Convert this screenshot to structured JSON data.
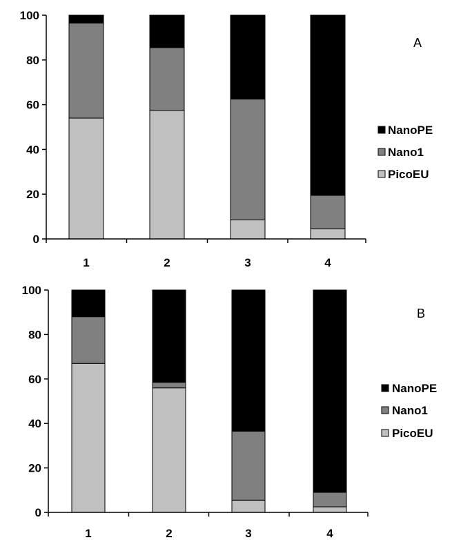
{
  "chart_data": [
    {
      "type": "bar",
      "stacked": true,
      "panel_label": "A",
      "categories": [
        "1",
        "2",
        "3",
        "4"
      ],
      "series": [
        {
          "name": "PicoEU",
          "values": [
            54,
            57.5,
            8.5,
            4.5
          ],
          "color": "#c0c0c0"
        },
        {
          "name": "Nano1",
          "values": [
            42.5,
            28,
            54,
            15
          ],
          "color": "#808080"
        },
        {
          "name": "NanoPE",
          "values": [
            3.5,
            14.5,
            37.5,
            80.5
          ],
          "color": "#000000"
        }
      ],
      "ylim": [
        0,
        100
      ],
      "yticks": [
        "0",
        "20",
        "40",
        "60",
        "80",
        "100"
      ],
      "legend_position": "right",
      "grid": false
    },
    {
      "type": "bar",
      "stacked": true,
      "panel_label": "B",
      "categories": [
        "1",
        "2",
        "3",
        "4"
      ],
      "series": [
        {
          "name": "PicoEU",
          "values": [
            67,
            56,
            5.5,
            2.5
          ],
          "color": "#c0c0c0"
        },
        {
          "name": "Nano1",
          "values": [
            21,
            2.5,
            31,
            6.5
          ],
          "color": "#808080"
        },
        {
          "name": "NanoPE",
          "values": [
            12,
            41.5,
            63.5,
            91
          ],
          "color": "#000000"
        }
      ],
      "ylim": [
        0,
        100
      ],
      "yticks": [
        "0",
        "20",
        "40",
        "60",
        "80",
        "100"
      ],
      "legend_position": "right",
      "grid": false
    }
  ]
}
